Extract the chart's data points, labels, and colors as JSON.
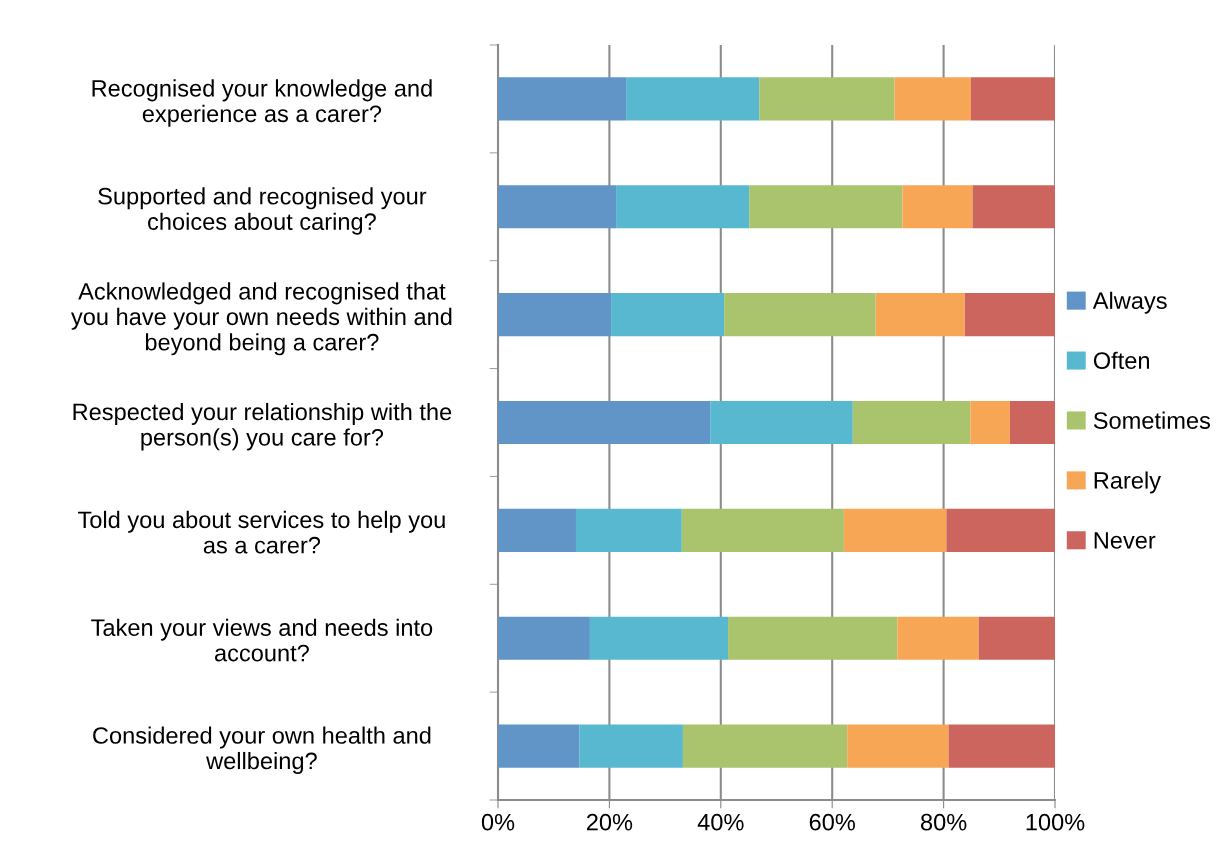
{
  "chart_data": {
    "type": "bar",
    "orientation": "horizontal",
    "stacked": true,
    "categories": [
      "Recognised your knowledge and\nexperience as a carer?",
      "Supported and recognised your\nchoices about caring?",
      "Acknowledged and recognised that\nyou have your own needs within and\nbeyond being a carer?",
      "Respected your relationship with the\nperson(s) you care for?",
      "Told you about services to help you\nas a carer?",
      "Taken your views and needs into\naccount?",
      "Considered your own health and\nwellbeing?"
    ],
    "series": [
      {
        "name": "Always",
        "color": "#6194c7",
        "values": [
          23.0,
          21.2,
          20.3,
          38.1,
          14.0,
          16.5,
          14.6
        ]
      },
      {
        "name": "Often",
        "color": "#57b8d0",
        "values": [
          23.9,
          23.9,
          20.3,
          25.6,
          19.0,
          24.8,
          18.6
        ]
      },
      {
        "name": "Sometimes",
        "color": "#aac46d",
        "values": [
          24.3,
          27.5,
          27.2,
          21.1,
          29.1,
          30.4,
          29.5
        ]
      },
      {
        "name": "Rarely",
        "color": "#f7a656",
        "values": [
          13.7,
          12.6,
          16.0,
          7.1,
          18.4,
          14.6,
          18.2
        ]
      },
      {
        "name": "Never",
        "color": "#cb655d",
        "values": [
          15.1,
          14.8,
          16.2,
          8.1,
          19.5,
          13.7,
          19.1
        ]
      }
    ],
    "xlim": [
      0,
      100
    ],
    "xticks": [
      {
        "value": 0,
        "label": "0%"
      },
      {
        "value": 20,
        "label": "20%"
      },
      {
        "value": 40,
        "label": "40%"
      },
      {
        "value": 60,
        "label": "60%"
      },
      {
        "value": 80,
        "label": "80%"
      },
      {
        "value": 100,
        "label": "100%"
      }
    ],
    "grid": "x",
    "legend": "right"
  }
}
